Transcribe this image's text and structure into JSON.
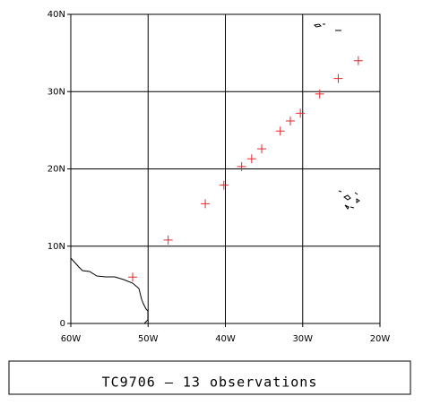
{
  "chart_data": {
    "type": "scatter",
    "title": "TC9706 – 13 observations",
    "x": [
      -52.0,
      -47.4,
      -42.6,
      -40.2,
      -37.9,
      -36.6,
      -35.3,
      -32.9,
      -31.6,
      -30.3,
      -27.8,
      -25.4,
      -22.8
    ],
    "values": [
      6.0,
      10.8,
      15.5,
      17.9,
      20.3,
      21.3,
      22.6,
      24.9,
      26.2,
      27.2,
      29.7,
      31.7,
      34.0
    ],
    "color": "#e8262b",
    "xlim": [
      -60,
      -20
    ],
    "ylim": [
      0,
      40
    ],
    "xticks": [
      {
        "value": -60,
        "label": "60W"
      },
      {
        "value": -50,
        "label": "50W"
      },
      {
        "value": -40,
        "label": "40W"
      },
      {
        "value": -30,
        "label": "30W"
      },
      {
        "value": -20,
        "label": "20W"
      }
    ],
    "yticks": [
      0,
      {
        "value": 10,
        "label": "10N"
      },
      {
        "value": 20,
        "label": "20N"
      },
      {
        "value": 30,
        "label": "30N"
      },
      {
        "value": 40,
        "label": "40N"
      }
    ],
    "grid": true
  }
}
